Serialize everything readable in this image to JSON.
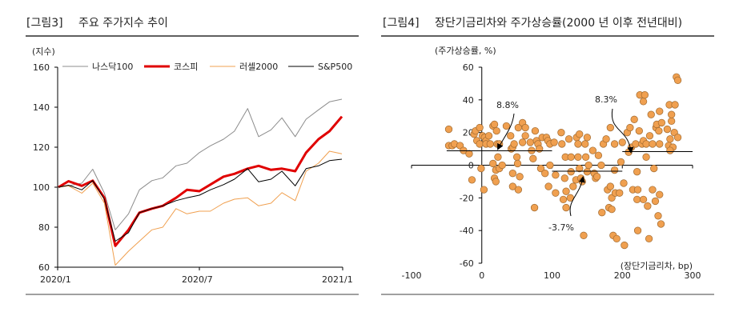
{
  "left_title": {
    "tag": "[그림3]",
    "text": "주요 주가지수 추이"
  },
  "right_title": {
    "tag": "[그림4]",
    "text": "장단기금리차와 주가상승률(2000 년 이후 전년대비)"
  },
  "chart_data": [
    {
      "type": "line",
      "ylabel": "(지수)",
      "ylim": [
        60,
        160
      ],
      "yticks": [
        60,
        80,
        100,
        120,
        140,
        160
      ],
      "xticks": [
        "2020/1",
        "2020/7",
        "2021/1"
      ],
      "legend_placement": "top",
      "x": [
        "2020-01-02",
        "2020-01-15",
        "2020-02-01",
        "2020-02-15",
        "2020-03-01",
        "2020-03-15",
        "2020-04-01",
        "2020-04-15",
        "2020-05-01",
        "2020-05-15",
        "2020-06-01",
        "2020-06-15",
        "2020-07-01",
        "2020-07-15",
        "2020-08-01",
        "2020-08-15",
        "2020-09-01",
        "2020-09-15",
        "2020-10-01",
        "2020-10-15",
        "2020-11-01",
        "2020-11-15",
        "2020-12-01",
        "2020-12-15",
        "2020-12-31"
      ],
      "series": [
        {
          "name": "나스닥100",
          "color": "#8c8c8c",
          "width": 1,
          "values": [
            100,
            100.7,
            102,
            109,
            97,
            78.7,
            86.7,
            98.7,
            103.3,
            104.7,
            110.7,
            112,
            117.3,
            120.7,
            124,
            128,
            139.3,
            125.3,
            128.7,
            134.7,
            125.3,
            134,
            138.7,
            142.7,
            144
          ]
        },
        {
          "name": "코스피",
          "color": "#e00000",
          "width": 3,
          "values": [
            100,
            103,
            100.7,
            103.3,
            94.7,
            70.7,
            78.7,
            87.3,
            89.3,
            90.7,
            94.7,
            98.7,
            98,
            101.3,
            105.3,
            106.7,
            109.3,
            110.7,
            108.7,
            109.3,
            108,
            117.3,
            124,
            128,
            135.3
          ]
        },
        {
          "name": "러셀2000",
          "color": "#f0a050",
          "width": 1,
          "values": [
            100,
            100.7,
            97,
            102,
            92,
            61,
            68,
            73,
            78.7,
            80,
            89.3,
            86.7,
            88,
            88,
            92,
            94,
            94.7,
            90.7,
            92,
            97.3,
            93.3,
            108,
            112,
            118,
            116.7
          ]
        },
        {
          "name": "S&P500",
          "color": "#000000",
          "width": 1,
          "values": [
            100,
            101,
            98.7,
            103.3,
            94,
            73,
            77.3,
            87.3,
            89.3,
            90.7,
            93.3,
            94.7,
            96,
            98.7,
            101.3,
            104,
            109.3,
            102.7,
            104,
            108,
            100.7,
            109.3,
            110.7,
            113.3,
            114
          ]
        }
      ]
    },
    {
      "type": "scatter",
      "ylabel": "(주가상승률, %)",
      "xlabel": "(장단기금리차, bp)",
      "xlim": [
        -100,
        300
      ],
      "ylim": [
        -60,
        60
      ],
      "xticks": [
        -100,
        0,
        100,
        200,
        300
      ],
      "yticks": [
        60,
        40,
        20,
        0,
        -20,
        -40,
        -60
      ],
      "color": "#f0a050",
      "edge_color": "#a06a30",
      "points": [
        [
          -47,
          22
        ],
        [
          -47,
          12
        ],
        [
          -42,
          12
        ],
        [
          -39,
          13
        ],
        [
          -31,
          12
        ],
        [
          -26,
          9
        ],
        [
          -18,
          7
        ],
        [
          -14,
          -9
        ],
        [
          -11,
          19
        ],
        [
          -9,
          21
        ],
        [
          -7,
          15
        ],
        [
          -3,
          23
        ],
        [
          -3,
          13
        ],
        [
          -1,
          -2
        ],
        [
          3,
          -15
        ],
        [
          1,
          18
        ],
        [
          4,
          17
        ],
        [
          6,
          15
        ],
        [
          6,
          13
        ],
        [
          10,
          18
        ],
        [
          12,
          13
        ],
        [
          16,
          24
        ],
        [
          18,
          25
        ],
        [
          21,
          21
        ],
        [
          22,
          13
        ],
        [
          25,
          13
        ],
        [
          16,
          1
        ],
        [
          20,
          -3
        ],
        [
          18,
          -8
        ],
        [
          20,
          -10
        ],
        [
          23,
          5
        ],
        [
          25,
          -2
        ],
        [
          29,
          0
        ],
        [
          35,
          24
        ],
        [
          41,
          18
        ],
        [
          42,
          10
        ],
        [
          44,
          11
        ],
        [
          46,
          13
        ],
        [
          44,
          -5
        ],
        [
          44,
          -13
        ],
        [
          50,
          5
        ],
        [
          51,
          1
        ],
        [
          52,
          -15
        ],
        [
          54,
          -7
        ],
        [
          52,
          23
        ],
        [
          58,
          26
        ],
        [
          62,
          23
        ],
        [
          62,
          18
        ],
        [
          58,
          14
        ],
        [
          69,
          14
        ],
        [
          71,
          9
        ],
        [
          73,
          4
        ],
        [
          75,
          -26
        ],
        [
          76,
          21
        ],
        [
          78,
          15
        ],
        [
          80,
          13
        ],
        [
          82,
          10
        ],
        [
          84,
          -2
        ],
        [
          86,
          17
        ],
        [
          90,
          -5
        ],
        [
          92,
          17
        ],
        [
          94,
          15
        ],
        [
          97,
          13
        ],
        [
          97,
          0
        ],
        [
          95,
          -13
        ],
        [
          105,
          -17
        ],
        [
          103,
          14
        ],
        [
          105,
          -6
        ],
        [
          113,
          20
        ],
        [
          114,
          13
        ],
        [
          116,
          -21
        ],
        [
          118,
          -8
        ],
        [
          119,
          5
        ],
        [
          120,
          -16
        ],
        [
          120,
          -26
        ],
        [
          124,
          16
        ],
        [
          126,
          -20
        ],
        [
          127,
          5
        ],
        [
          127,
          -4
        ],
        [
          130,
          -13
        ],
        [
          134,
          -9
        ],
        [
          135,
          17
        ],
        [
          137,
          5
        ],
        [
          137,
          13
        ],
        [
          139,
          19
        ],
        [
          139,
          -2
        ],
        [
          141,
          -8
        ],
        [
          143,
          -10
        ],
        [
          145,
          -43
        ],
        [
          147,
          13
        ],
        [
          148,
          5
        ],
        [
          150,
          17
        ],
        [
          150,
          -4
        ],
        [
          152,
          0
        ],
        [
          158,
          9
        ],
        [
          160,
          -5
        ],
        [
          162,
          -8
        ],
        [
          164,
          -7
        ],
        [
          166,
          6
        ],
        [
          170,
          0
        ],
        [
          171,
          -29
        ],
        [
          173,
          13
        ],
        [
          177,
          16
        ],
        [
          179,
          -15
        ],
        [
          181,
          -26
        ],
        [
          183,
          23
        ],
        [
          183,
          -13
        ],
        [
          185,
          -20
        ],
        [
          185,
          -27
        ],
        [
          187,
          -43
        ],
        [
          189,
          13
        ],
        [
          189,
          -3
        ],
        [
          190,
          -17
        ],
        [
          192,
          -45
        ],
        [
          196,
          -17
        ],
        [
          198,
          2
        ],
        [
          200,
          14
        ],
        [
          202,
          -11
        ],
        [
          203,
          -49
        ],
        [
          207,
          20
        ],
        [
          209,
          8
        ],
        [
          211,
          23
        ],
        [
          213,
          11
        ],
        [
          215,
          -15
        ],
        [
          217,
          28
        ],
        [
          219,
          13
        ],
        [
          221,
          -4
        ],
        [
          221,
          -21
        ],
        [
          222,
          -40
        ],
        [
          222,
          -15
        ],
        [
          224,
          21
        ],
        [
          225,
          43
        ],
        [
          230,
          39
        ],
        [
          232,
          43
        ],
        [
          228,
          13
        ],
        [
          230,
          15
        ],
        [
          230,
          -21
        ],
        [
          234,
          5
        ],
        [
          234,
          13
        ],
        [
          236,
          -25
        ],
        [
          239,
          18
        ],
        [
          241,
          31
        ],
        [
          243,
          13
        ],
        [
          243,
          -15
        ],
        [
          245,
          -2
        ],
        [
          247,
          -22
        ],
        [
          248,
          23
        ],
        [
          249,
          25
        ],
        [
          251,
          -31
        ],
        [
          252,
          21
        ],
        [
          253,
          33
        ],
        [
          253,
          13
        ],
        [
          253,
          -18
        ],
        [
          255,
          -36
        ],
        [
          256,
          26
        ],
        [
          264,
          22
        ],
        [
          266,
          12
        ],
        [
          267,
          37
        ],
        [
          268,
          16
        ],
        [
          270,
          27
        ],
        [
          270,
          31
        ],
        [
          272,
          11
        ],
        [
          274,
          20
        ],
        [
          275,
          37
        ],
        [
          277,
          54
        ],
        [
          279,
          52
        ],
        [
          279,
          17
        ],
        [
          238,
          -45
        ],
        [
          268,
          9
        ]
      ],
      "mean_lines": [
        {
          "label": "8.8%",
          "value": 8.8,
          "x_range": [
            -50,
            100
          ]
        },
        {
          "label": "-3.7%",
          "value": -3.7,
          "x_range": [
            100,
            200
          ]
        },
        {
          "label": "8.3%",
          "value": 8.3,
          "x_range": [
            200,
            300
          ]
        }
      ]
    }
  ]
}
